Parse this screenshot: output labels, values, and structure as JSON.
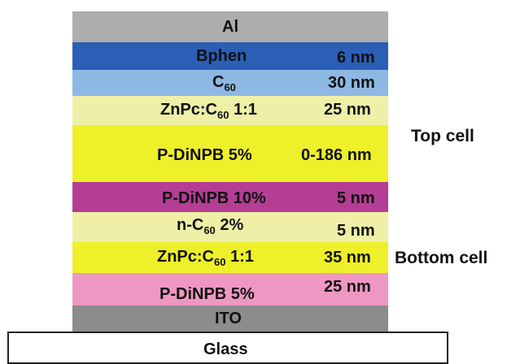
{
  "layers": {
    "al": {
      "name": "Al",
      "color": "#adadad"
    },
    "bphen": {
      "name": "Bphen",
      "thickness": "6 nm",
      "color": "#2a5fb5"
    },
    "c60": {
      "name_prefix": "C",
      "name_sub": "60",
      "thickness": "30 nm",
      "color": "#8db8e4"
    },
    "zn_top": {
      "name_prefix": "ZnPc:C",
      "name_sub": "60",
      "name_suffix": " 1:1",
      "thickness": "25 nm",
      "color": "#eef0a8"
    },
    "p_top": {
      "name": "P-DiNPB 5%",
      "thickness": "0-186 nm",
      "color": "#eef02a"
    },
    "p10": {
      "name": "P-DiNPB 10%",
      "thickness": "5 nm",
      "color": "#b43e94"
    },
    "nc60": {
      "name_prefix": "n-C",
      "name_sub": "60",
      "name_suffix": " 2%",
      "thickness": "5 nm",
      "color": "#eef0a8"
    },
    "zn_bot": {
      "name_prefix": "ZnPc:C",
      "name_sub": "60",
      "name_suffix": " 1:1",
      "thickness": "35 nm",
      "color": "#eef02a"
    },
    "p_bot": {
      "name": "P-DiNPB 5%",
      "thickness": "25 nm",
      "color": "#ee97c2"
    },
    "ito": {
      "name": "ITO",
      "color": "#8c8c8c"
    },
    "glass": {
      "name": "Glass"
    }
  },
  "labels": {
    "top_cell": "Top cell",
    "bottom_cell": "Bottom cell"
  }
}
